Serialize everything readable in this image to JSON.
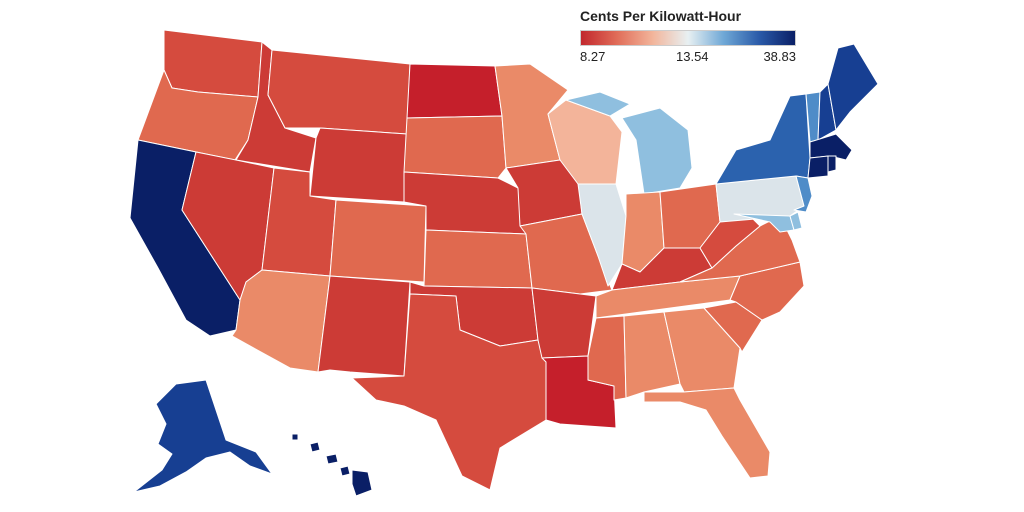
{
  "legend": {
    "title": "Cents Per Kilowatt-Hour",
    "min_label": "8.27",
    "mid_label": "13.54",
    "max_label": "38.83",
    "colors": [
      "#c1272d",
      "#e06c58",
      "#f2b49a",
      "#e8f0f2",
      "#6fa8d6",
      "#2a5aa8",
      "#0a1f66"
    ]
  },
  "colors": {
    "darkred": "#c51f2b",
    "red": "#cc3b36",
    "redorange": "#d54b3e",
    "orange": "#e0694f",
    "lightorange": "#ea8a68",
    "peach": "#f3b49a",
    "palegray": "#dbe4ea",
    "lightblue": "#8fbfdf",
    "midblue": "#4f8cc8",
    "blue": "#2b62ae",
    "darkblue": "#173f92",
    "navy": "#0a1f66"
  },
  "chart_data": {
    "type": "choropleth",
    "title": "Cents Per Kilowatt-Hour",
    "scale": {
      "min": 8.27,
      "mid": 13.54,
      "max": 38.83
    },
    "states": [
      {
        "state": "WA",
        "color": "redorange"
      },
      {
        "state": "OR",
        "color": "orange"
      },
      {
        "state": "CA",
        "color": "navy"
      },
      {
        "state": "ID",
        "color": "red"
      },
      {
        "state": "NV",
        "color": "red"
      },
      {
        "state": "MT",
        "color": "redorange"
      },
      {
        "state": "WY",
        "color": "red"
      },
      {
        "state": "UT",
        "color": "redorange"
      },
      {
        "state": "AZ",
        "color": "lightorange"
      },
      {
        "state": "CO",
        "color": "orange"
      },
      {
        "state": "NM",
        "color": "red"
      },
      {
        "state": "ND",
        "color": "darkred"
      },
      {
        "state": "SD",
        "color": "orange"
      },
      {
        "state": "NE",
        "color": "red"
      },
      {
        "state": "KS",
        "color": "orange"
      },
      {
        "state": "OK",
        "color": "red"
      },
      {
        "state": "TX",
        "color": "redorange"
      },
      {
        "state": "MN",
        "color": "lightorange"
      },
      {
        "state": "IA",
        "color": "red"
      },
      {
        "state": "MO",
        "color": "orange"
      },
      {
        "state": "AR",
        "color": "red"
      },
      {
        "state": "LA",
        "color": "darkred"
      },
      {
        "state": "WI",
        "color": "peach"
      },
      {
        "state": "IL",
        "color": "palegray"
      },
      {
        "state": "MI",
        "color": "lightblue"
      },
      {
        "state": "IN",
        "color": "lightorange"
      },
      {
        "state": "OH",
        "color": "orange"
      },
      {
        "state": "KY",
        "color": "red"
      },
      {
        "state": "TN",
        "color": "lightorange"
      },
      {
        "state": "MS",
        "color": "orange"
      },
      {
        "state": "AL",
        "color": "lightorange"
      },
      {
        "state": "GA",
        "color": "lightorange"
      },
      {
        "state": "FL",
        "color": "lightorange"
      },
      {
        "state": "SC",
        "color": "orange"
      },
      {
        "state": "NC",
        "color": "orange"
      },
      {
        "state": "VA",
        "color": "orange"
      },
      {
        "state": "WV",
        "color": "redorange"
      },
      {
        "state": "PA",
        "color": "palegray"
      },
      {
        "state": "NY",
        "color": "blue"
      },
      {
        "state": "NJ",
        "color": "midblue"
      },
      {
        "state": "DE",
        "color": "lightblue"
      },
      {
        "state": "MD",
        "color": "lightblue"
      },
      {
        "state": "VT",
        "color": "midblue"
      },
      {
        "state": "NH",
        "color": "darkblue"
      },
      {
        "state": "ME",
        "color": "darkblue"
      },
      {
        "state": "MA",
        "color": "navy"
      },
      {
        "state": "CT",
        "color": "navy"
      },
      {
        "state": "RI",
        "color": "navy"
      },
      {
        "state": "AK",
        "color": "darkblue"
      },
      {
        "state": "HI",
        "color": "navy"
      }
    ]
  }
}
